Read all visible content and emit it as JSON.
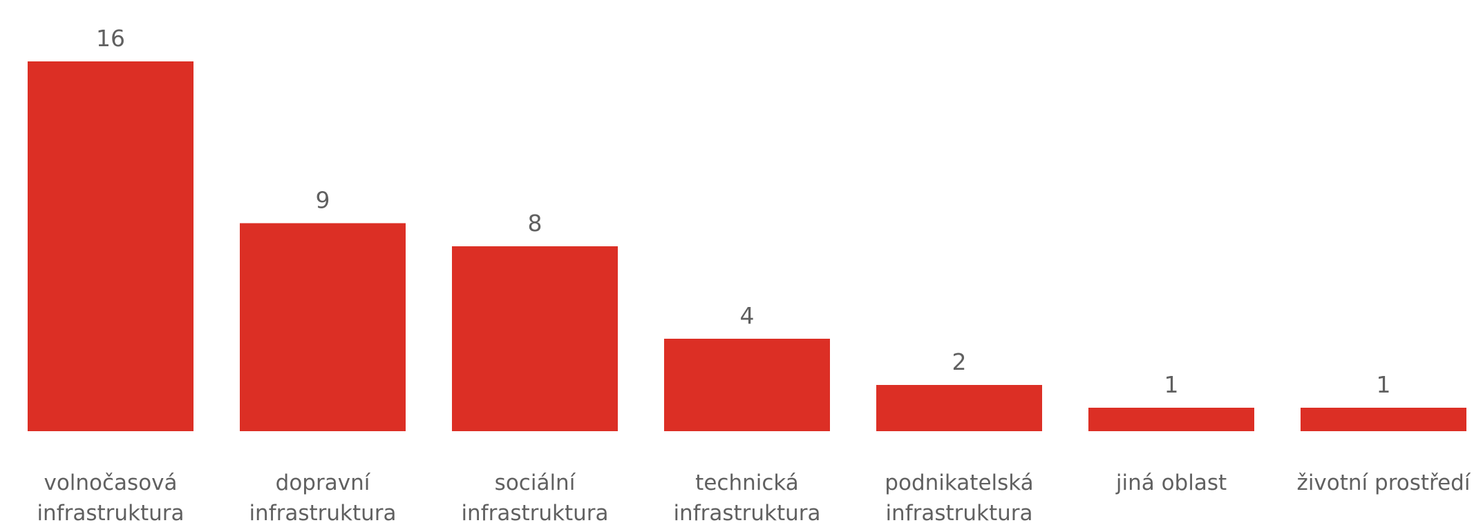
{
  "chart_data": {
    "type": "bar",
    "title": "",
    "xlabel": "",
    "ylabel": "",
    "ylim": [
      0,
      16
    ],
    "grid": false,
    "legend": "none",
    "bar_color": "#dc2f25",
    "label_color": "#606060",
    "categories": [
      [
        "volnočasová",
        "infrastruktura"
      ],
      [
        "dopravní",
        "infrastruktura"
      ],
      [
        "sociální",
        "infrastruktura"
      ],
      [
        "technická",
        "infrastruktura"
      ],
      [
        "podnikatelská",
        "infrastruktura"
      ],
      [
        "jiná oblast"
      ],
      [
        "životní prostředí"
      ]
    ],
    "values": [
      16,
      9,
      8,
      4,
      2,
      1,
      1
    ]
  }
}
